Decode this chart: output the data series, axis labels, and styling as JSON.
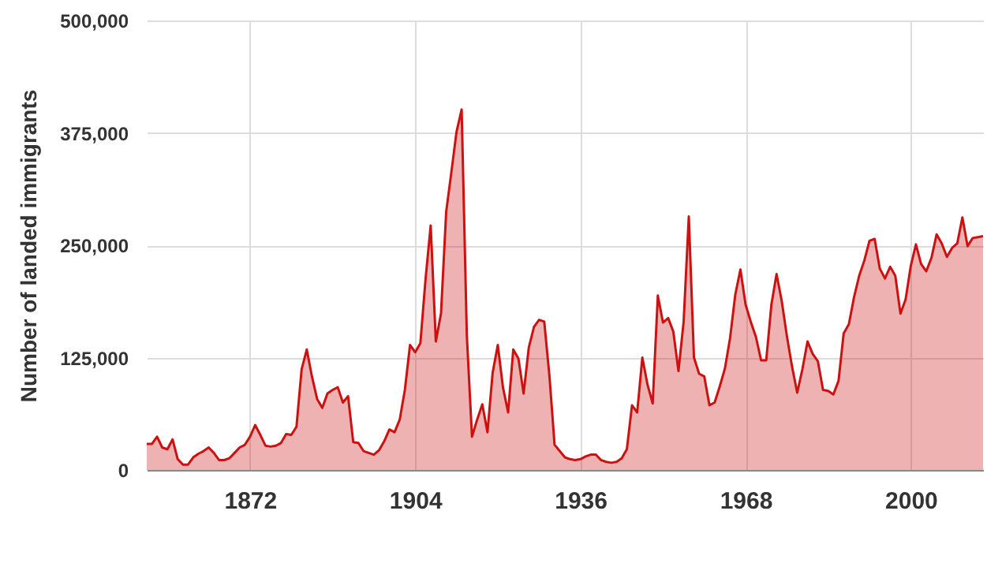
{
  "chart_data": {
    "type": "area",
    "ylabel": "Number of landed immigrants",
    "x": [
      1852,
      1853,
      1854,
      1855,
      1856,
      1857,
      1858,
      1859,
      1860,
      1861,
      1862,
      1863,
      1864,
      1865,
      1866,
      1867,
      1868,
      1869,
      1870,
      1871,
      1872,
      1873,
      1874,
      1875,
      1876,
      1877,
      1878,
      1879,
      1880,
      1881,
      1882,
      1883,
      1884,
      1885,
      1886,
      1887,
      1888,
      1889,
      1890,
      1891,
      1892,
      1893,
      1894,
      1895,
      1896,
      1897,
      1898,
      1899,
      1900,
      1901,
      1902,
      1903,
      1904,
      1905,
      1906,
      1907,
      1908,
      1909,
      1910,
      1911,
      1912,
      1913,
      1914,
      1915,
      1916,
      1917,
      1918,
      1919,
      1920,
      1921,
      1922,
      1923,
      1924,
      1925,
      1926,
      1927,
      1928,
      1929,
      1930,
      1931,
      1932,
      1933,
      1934,
      1935,
      1936,
      1937,
      1938,
      1939,
      1940,
      1941,
      1942,
      1943,
      1944,
      1945,
      1946,
      1947,
      1948,
      1949,
      1950,
      1951,
      1952,
      1953,
      1954,
      1955,
      1956,
      1957,
      1958,
      1959,
      1960,
      1961,
      1962,
      1963,
      1964,
      1965,
      1966,
      1967,
      1968,
      1969,
      1970,
      1971,
      1972,
      1973,
      1974,
      1975,
      1976,
      1977,
      1978,
      1979,
      1980,
      1981,
      1982,
      1983,
      1984,
      1985,
      1986,
      1987,
      1988,
      1989,
      1990,
      1991,
      1992,
      1993,
      1994,
      1995,
      1996,
      1997,
      1998,
      1999,
      2000,
      2001,
      2002,
      2003,
      2004,
      2005,
      2006,
      2007,
      2008,
      2009,
      2010,
      2011,
      2012,
      2013,
      2014
    ],
    "series": [
      {
        "color": "#cc1111",
        "values": [
          29000,
          29000,
          37000,
          25000,
          23000,
          34000,
          12000,
          6000,
          6000,
          14000,
          18000,
          21000,
          25000,
          19000,
          11000,
          11000,
          13000,
          19000,
          25000,
          28000,
          37000,
          50000,
          39000,
          27000,
          26000,
          27000,
          30000,
          40000,
          39000,
          48000,
          112000,
          134000,
          104000,
          79000,
          69000,
          85000,
          89000,
          92000,
          75000,
          82000,
          31000,
          30000,
          21000,
          19000,
          17000,
          22000,
          32000,
          45000,
          42000,
          56000,
          89000,
          139000,
          131000,
          141000,
          212000,
          272000,
          143000,
          174000,
          287000,
          331000,
          376000,
          401000,
          150000,
          37000,
          56000,
          73000,
          42000,
          108000,
          139000,
          92000,
          64000,
          134000,
          124000,
          85000,
          136000,
          159000,
          167000,
          165000,
          105000,
          28000,
          21000,
          14000,
          12000,
          11000,
          12000,
          15000,
          17000,
          17000,
          11000,
          9000,
          8000,
          9000,
          13000,
          23000,
          72000,
          64000,
          125000,
          95000,
          74000,
          194000,
          164000,
          169000,
          154000,
          110000,
          165000,
          282000,
          125000,
          107000,
          104000,
          72000,
          75000,
          93000,
          113000,
          147000,
          195000,
          223000,
          184000,
          165000,
          148000,
          122000,
          122000,
          184000,
          218000,
          188000,
          149000,
          115000,
          86000,
          112000,
          143000,
          129000,
          121000,
          89000,
          88000,
          84000,
          99000,
          152000,
          162000,
          192000,
          216000,
          233000,
          255000,
          257000,
          224000,
          213000,
          226000,
          216000,
          174000,
          190000,
          227000,
          251000,
          229000,
          221000,
          236000,
          262000,
          252000,
          237000,
          247000,
          252000,
          281000,
          249000,
          258000,
          259000,
          260000
        ]
      }
    ],
    "xlim": [
      1852,
      2014
    ],
    "xticks": [
      1872,
      1904,
      1936,
      1968,
      2000
    ],
    "ylim": [
      0,
      500000
    ],
    "yticks": [
      {
        "value": 0,
        "label": "0"
      },
      {
        "value": 125000,
        "label": "125,000"
      },
      {
        "value": 250000,
        "label": "250,000"
      },
      {
        "value": 375000,
        "label": "375,000"
      },
      {
        "value": 500000,
        "label": "500,000"
      }
    ],
    "grid": true
  }
}
